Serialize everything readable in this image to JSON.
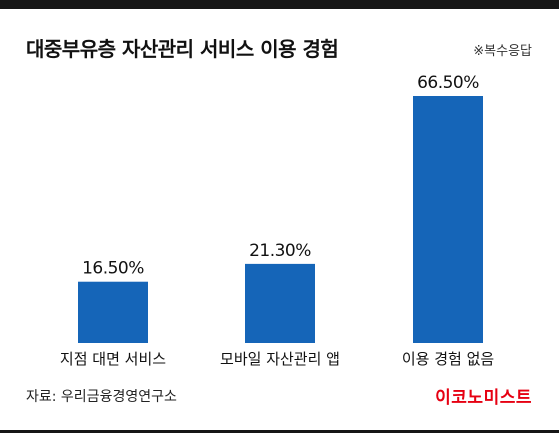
{
  "header": {
    "title": "대중부유층 자산관리 서비스 이용 경험",
    "note": "※복수응답"
  },
  "footer": {
    "source": "자료: 우리금융경영연구소",
    "logo": "이코노미스트",
    "logo_color": "#e60012"
  },
  "colors": {
    "bar": "#1565b8",
    "text": "#111111",
    "rule": "#161616"
  },
  "chart_data": {
    "type": "bar",
    "title": "대중부유층 자산관리 서비스 이용 경험",
    "xlabel": "",
    "ylabel": "",
    "ylim": [
      0,
      70
    ],
    "unit": "%",
    "grid": false,
    "categories": [
      "지점 대면 서비스",
      "모바일 자산관리 앱",
      "이용 경험 없음"
    ],
    "values": [
      16.5,
      21.3,
      66.5
    ],
    "value_labels": [
      "16.50%",
      "21.30%",
      "66.50%"
    ]
  }
}
